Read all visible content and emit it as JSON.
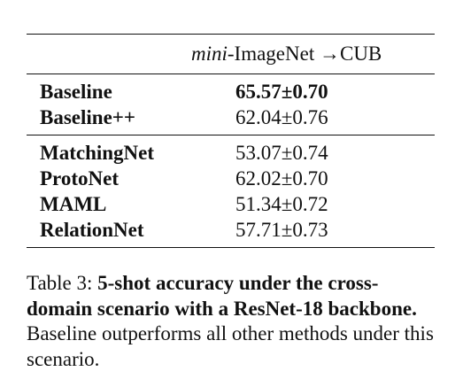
{
  "table": {
    "header": {
      "col_italic": "mini",
      "col_rest": "-ImageNet →CUB"
    },
    "group1": [
      {
        "method": "Baseline",
        "value": "65.57±0.70"
      },
      {
        "method": "Baseline++",
        "value": "62.04±0.76"
      }
    ],
    "group2": [
      {
        "method": "MatchingNet",
        "value": "53.07±0.74"
      },
      {
        "method": "ProtoNet",
        "value": "62.02±0.70"
      },
      {
        "method": "MAML",
        "value": "51.34±0.72"
      },
      {
        "method": "RelationNet",
        "value": "57.71±0.73"
      }
    ]
  },
  "caption": {
    "label": "Table 3: ",
    "bold": "5-shot accuracy under the cross-domain scenario with a ResNet-18 backbone.",
    "rest": " Baseline outperforms all other methods under this scenario."
  }
}
